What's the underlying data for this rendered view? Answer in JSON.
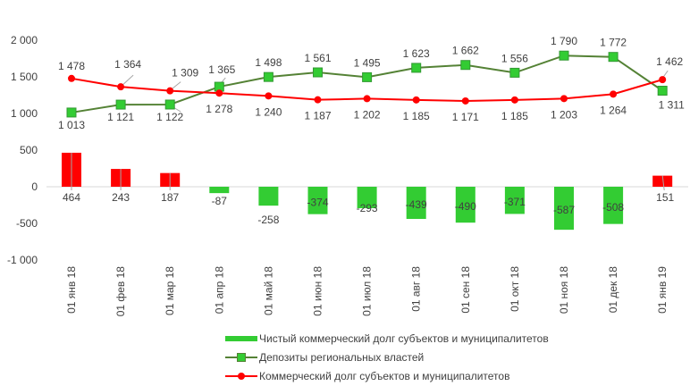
{
  "chart_data": {
    "type": "bar+line",
    "categories": [
      "01 янв 18",
      "01 фев 18",
      "01 мар 18",
      "01 апр 18",
      "01 май 18",
      "01 июн 18",
      "01 июл 18",
      "01 авг 18",
      "01 сен 18",
      "01 окт 18",
      "01 ноя 18",
      "01 дек 18",
      "01 янв 19"
    ],
    "ylim": [
      -1000,
      2000
    ],
    "yticks": [
      -1000,
      -500,
      0,
      500,
      1000,
      1500,
      2000
    ],
    "ytick_labels": [
      "-1 000",
      "-500",
      "0",
      "500",
      "1 000",
      "1 500",
      "2 000"
    ],
    "grid": false,
    "legend_position": "bottom",
    "series": [
      {
        "name": "Чистый коммерческий долг субъектов и муниципалитетов",
        "type": "bar",
        "color_positive": "#ff0000",
        "color_negative": "#33cc33",
        "values": [
          464,
          243,
          187,
          -87,
          -258,
          -374,
          -293,
          -439,
          -490,
          -371,
          -587,
          -508,
          151
        ],
        "labels": [
          "464",
          "243",
          "187",
          "-87",
          "-258",
          "-374",
          "-293",
          "-439",
          "-490",
          "-371",
          "-587",
          "-508",
          "151"
        ]
      },
      {
        "name": "Депозиты региональных властей",
        "type": "line",
        "marker": "square",
        "line_color": "#548235",
        "marker_color": "#33cc33",
        "values": [
          1013,
          1121,
          1122,
          1365,
          1498,
          1561,
          1495,
          1623,
          1662,
          1556,
          1790,
          1772,
          1311
        ],
        "labels": [
          "1 013",
          "1 121",
          "1 122",
          "1 365",
          "1 498",
          "1 561",
          "1 495",
          "1 623",
          "1 662",
          "1 556",
          "1 790",
          "1 772",
          "1 311"
        ]
      },
      {
        "name": "Коммерческий долг субъектов и муниципалитетов",
        "type": "line",
        "marker": "circle",
        "line_color": "#ff0000",
        "marker_color": "#ff0000",
        "values": [
          1478,
          1364,
          1309,
          1278,
          1240,
          1187,
          1202,
          1185,
          1171,
          1185,
          1203,
          1264,
          1462
        ],
        "labels": [
          "1 478",
          "1 364",
          "1 309",
          "1 278",
          "1 240",
          "1 187",
          "1 202",
          "1 185",
          "1 171",
          "1 185",
          "1 203",
          "1 264",
          "1 462"
        ]
      }
    ]
  }
}
